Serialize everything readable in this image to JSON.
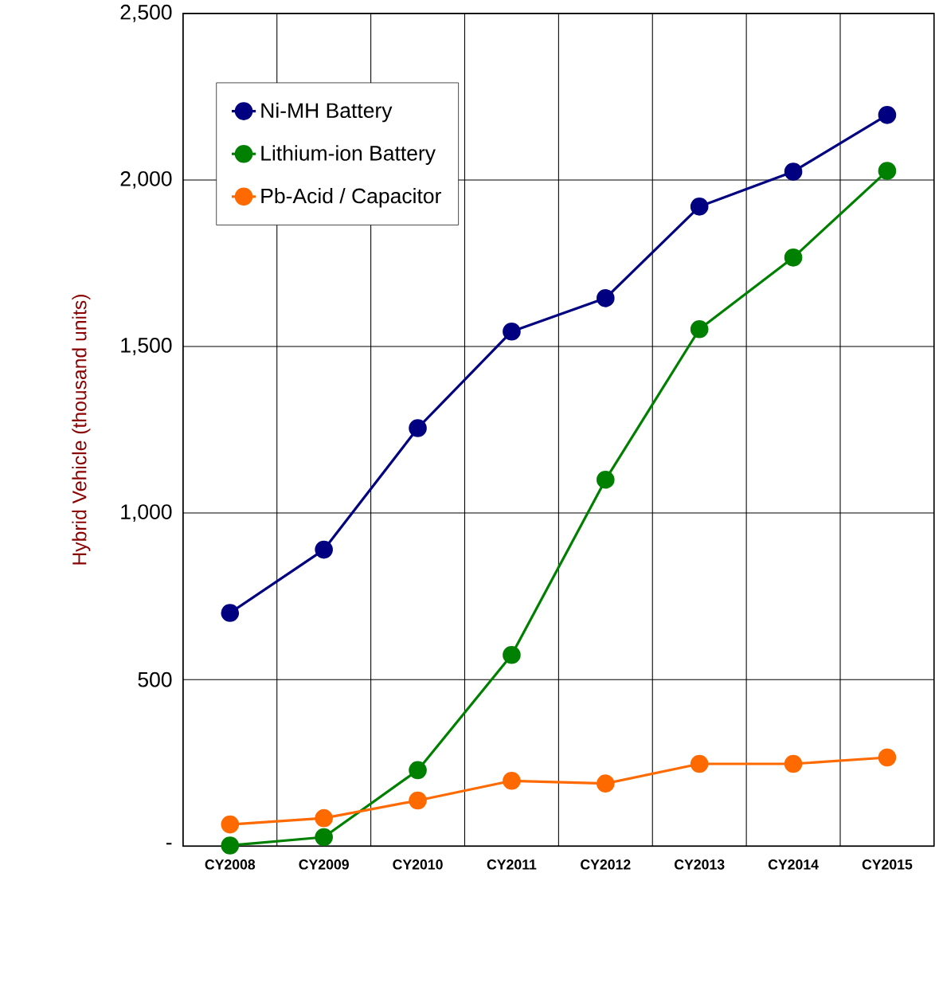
{
  "chart_data": {
    "type": "line",
    "ylabel": "Hybrid Vehicle  (thousand units)",
    "categories": [
      "CY2008",
      "CY2009",
      "CY2010",
      "CY2011",
      "CY2012",
      "CY2013",
      "CY2014",
      "CY2015"
    ],
    "series": [
      {
        "name": "Ni-MH Battery",
        "color": "#000080",
        "values": [
          700,
          890,
          1255,
          1545,
          1645,
          1920,
          2025,
          2195
        ]
      },
      {
        "name": "Lithium-ion Battery",
        "color": "#008000",
        "values": [
          2,
          27,
          228,
          574,
          1100,
          1552,
          1767,
          2027
        ]
      },
      {
        "name": "Pb-Acid / Capacitor",
        "color": "#ff6a00",
        "values": [
          65,
          84,
          137,
          196,
          188,
          247,
          247,
          266
        ]
      }
    ],
    "ylim": [
      0,
      2500
    ],
    "yticks": [
      {
        "value": 0,
        "label": "-"
      },
      {
        "value": 500,
        "label": "500"
      },
      {
        "value": 1000,
        "label": "1,000"
      },
      {
        "value": 1500,
        "label": "1,500"
      },
      {
        "value": 2000,
        "label": "2,000"
      },
      {
        "value": 2500,
        "label": "2,500"
      }
    ],
    "grid": true,
    "legend": "top left",
    "marker": "circle",
    "line_style": "solid"
  }
}
